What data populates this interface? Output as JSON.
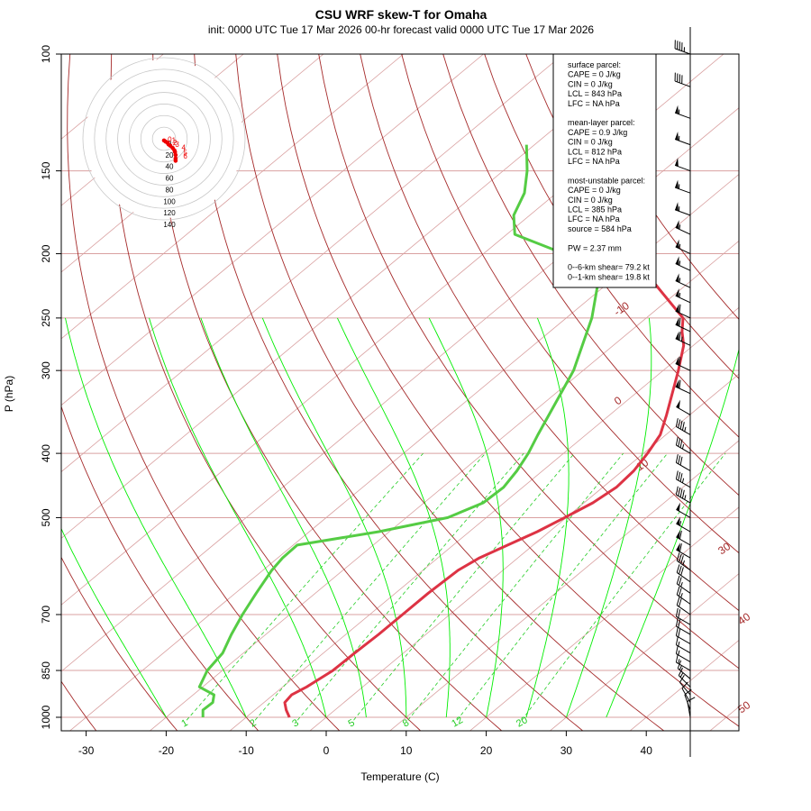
{
  "chart_data": {
    "type": "skew-t",
    "title": "CSU WRF skew-T for Omaha",
    "subtitle": "init: 0000 UTC Tue 17 Mar 2026     00-hr forecast valid 0000 UTC Tue 17 Mar 2026",
    "xlabel": "Temperature (C)",
    "ylabel": "P (hPa)",
    "xlim": [
      -33,
      45
    ],
    "ylim": [
      1000,
      100
    ],
    "x_ticks": [
      -30,
      -20,
      -10,
      0,
      10,
      20,
      30,
      40
    ],
    "y_ticks": [
      100,
      150,
      200,
      250,
      300,
      400,
      500,
      700,
      850,
      1000
    ],
    "dry_adiabat_labels": [
      "-10",
      "0",
      "10",
      "30",
      "40",
      "50"
    ],
    "dry_adiabats_C": [
      -70,
      -60,
      -50,
      -40,
      -30,
      -20,
      -10,
      0,
      10,
      20,
      30,
      40,
      50,
      60,
      70,
      80,
      90,
      100,
      110,
      120
    ],
    "moist_adiabats_C": [
      -20,
      -10,
      0,
      5,
      10,
      15,
      20,
      25,
      30,
      35
    ],
    "mixing_ratio_labels": [
      "1",
      "2",
      "3",
      "5",
      "8",
      "12",
      "20"
    ],
    "mixing_ratios_gkg": [
      1,
      2,
      3,
      5,
      8,
      12,
      20
    ],
    "series": [
      {
        "name": "temperature",
        "points": [
          [
            1000,
            -4.6
          ],
          [
            975,
            -6.1
          ],
          [
            950,
            -7.4
          ],
          [
            925,
            -7.7
          ],
          [
            900,
            -7.0
          ],
          [
            850,
            -6.2
          ],
          [
            800,
            -6.1
          ],
          [
            750,
            -5.9
          ],
          [
            700,
            -5.9
          ],
          [
            650,
            -5.9
          ],
          [
            600,
            -5.6
          ],
          [
            575,
            -4.8
          ],
          [
            550,
            -3.2
          ],
          [
            525,
            -1.5
          ],
          [
            500,
            -0.2
          ],
          [
            475,
            1.1
          ],
          [
            450,
            1.7
          ],
          [
            425,
            1.4
          ],
          [
            400,
            0.5
          ],
          [
            375,
            -0.7
          ],
          [
            350,
            -2.9
          ],
          [
            325,
            -5.4
          ],
          [
            300,
            -8.1
          ],
          [
            275,
            -11.2
          ],
          [
            262,
            -13.5
          ],
          [
            250,
            -15.4
          ],
          [
            237,
            -19.3
          ],
          [
            225,
            -23.1
          ],
          [
            212,
            -27.6
          ],
          [
            200,
            -30.9
          ],
          [
            187,
            -34.9
          ],
          [
            175,
            -38.9
          ],
          [
            162,
            -43.0
          ],
          [
            150,
            -47.7
          ],
          [
            137,
            -52.9
          ],
          [
            125,
            -57.9
          ],
          [
            112,
            -63.2
          ],
          [
            108,
            -64.9
          ]
        ]
      },
      {
        "name": "dewpoint",
        "points": [
          [
            1000,
            -15.4
          ],
          [
            975,
            -16.5
          ],
          [
            950,
            -16.4
          ],
          [
            925,
            -17.4
          ],
          [
            900,
            -20.4
          ],
          [
            850,
            -21.9
          ],
          [
            800,
            -22.6
          ],
          [
            750,
            -24.3
          ],
          [
            700,
            -25.9
          ],
          [
            650,
            -27.4
          ],
          [
            600,
            -28.9
          ],
          [
            575,
            -29.4
          ],
          [
            550,
            -29.5
          ],
          [
            525,
            -21.3
          ],
          [
            500,
            -14.8
          ],
          [
            475,
            -12.6
          ],
          [
            450,
            -12.4
          ],
          [
            425,
            -13.2
          ],
          [
            400,
            -14.4
          ],
          [
            375,
            -16.0
          ],
          [
            350,
            -17.6
          ],
          [
            300,
            -21.2
          ],
          [
            250,
            -26.8
          ],
          [
            225,
            -30.7
          ],
          [
            212,
            -32.5
          ],
          [
            200,
            -39.9
          ],
          [
            187,
            -49.0
          ],
          [
            175,
            -52.0
          ],
          [
            162,
            -54.0
          ],
          [
            150,
            -57.0
          ],
          [
            137,
            -61.0
          ]
        ]
      }
    ],
    "hodograph": {
      "ring_labels": [
        "0",
        "20",
        "40",
        "60",
        "80",
        "100",
        "120",
        "140"
      ],
      "trace_uv_kt": [
        [
          0,
          -3
        ],
        [
          3,
          -5
        ],
        [
          6,
          -7
        ],
        [
          8,
          -10
        ],
        [
          11,
          -12
        ],
        [
          15,
          -16
        ],
        [
          18,
          -20
        ],
        [
          19,
          -23
        ],
        [
          20,
          -28
        ],
        [
          20,
          -34
        ],
        [
          20,
          -38
        ]
      ],
      "height_labels": [
        "0",
        "1",
        "2",
        "3",
        "4",
        "5",
        "6"
      ],
      "height_label_uv_kt": [
        [
          -3,
          -2
        ],
        [
          4,
          -4
        ],
        [
          6,
          -8
        ],
        [
          10,
          -11
        ],
        [
          21,
          -16
        ],
        [
          24,
          -25
        ],
        [
          24,
          -31
        ]
      ]
    },
    "wind_barbs": [
      {
        "p": 1000,
        "speed_kt": 10,
        "dir": 350
      },
      {
        "p": 975,
        "speed_kt": 10,
        "dir": 340
      },
      {
        "p": 950,
        "speed_kt": 10,
        "dir": 330
      },
      {
        "p": 925,
        "speed_kt": 10,
        "dir": 320
      },
      {
        "p": 900,
        "speed_kt": 15,
        "dir": 315
      },
      {
        "p": 875,
        "speed_kt": 15,
        "dir": 310
      },
      {
        "p": 850,
        "speed_kt": 15,
        "dir": 300
      },
      {
        "p": 825,
        "speed_kt": 15,
        "dir": 300
      },
      {
        "p": 800,
        "speed_kt": 15,
        "dir": 300
      },
      {
        "p": 775,
        "speed_kt": 20,
        "dir": 300
      },
      {
        "p": 750,
        "speed_kt": 20,
        "dir": 300
      },
      {
        "p": 725,
        "speed_kt": 20,
        "dir": 300
      },
      {
        "p": 700,
        "speed_kt": 20,
        "dir": 305
      },
      {
        "p": 675,
        "speed_kt": 25,
        "dir": 305
      },
      {
        "p": 650,
        "speed_kt": 25,
        "dir": 305
      },
      {
        "p": 625,
        "speed_kt": 30,
        "dir": 305
      },
      {
        "p": 600,
        "speed_kt": 35,
        "dir": 305
      },
      {
        "p": 575,
        "speed_kt": 60,
        "dir": 300
      },
      {
        "p": 550,
        "speed_kt": 60,
        "dir": 300
      },
      {
        "p": 525,
        "speed_kt": 55,
        "dir": 300
      },
      {
        "p": 500,
        "speed_kt": 50,
        "dir": 300
      },
      {
        "p": 475,
        "speed_kt": 45,
        "dir": 300
      },
      {
        "p": 450,
        "speed_kt": 35,
        "dir": 300
      },
      {
        "p": 425,
        "speed_kt": 30,
        "dir": 300
      },
      {
        "p": 400,
        "speed_kt": 35,
        "dir": 300
      },
      {
        "p": 375,
        "speed_kt": 45,
        "dir": 300
      },
      {
        "p": 350,
        "speed_kt": 50,
        "dir": 300
      },
      {
        "p": 325,
        "speed_kt": 60,
        "dir": 295
      },
      {
        "p": 300,
        "speed_kt": 60,
        "dir": 295
      },
      {
        "p": 275,
        "speed_kt": 65,
        "dir": 295
      },
      {
        "p": 262,
        "speed_kt": 60,
        "dir": 295
      },
      {
        "p": 250,
        "speed_kt": 60,
        "dir": 295
      },
      {
        "p": 237,
        "speed_kt": 55,
        "dir": 295
      },
      {
        "p": 225,
        "speed_kt": 55,
        "dir": 295
      },
      {
        "p": 212,
        "speed_kt": 55,
        "dir": 295
      },
      {
        "p": 200,
        "speed_kt": 55,
        "dir": 295
      },
      {
        "p": 187,
        "speed_kt": 55,
        "dir": 295
      },
      {
        "p": 175,
        "speed_kt": 55,
        "dir": 290
      },
      {
        "p": 162,
        "speed_kt": 55,
        "dir": 290
      },
      {
        "p": 150,
        "speed_kt": 50,
        "dir": 290
      },
      {
        "p": 137,
        "speed_kt": 55,
        "dir": 290
      },
      {
        "p": 125,
        "speed_kt": 55,
        "dir": 290
      },
      {
        "p": 112,
        "speed_kt": 40,
        "dir": 290
      },
      {
        "p": 100,
        "speed_kt": 45,
        "dir": 290
      }
    ],
    "info_box": [
      "surface parcel:",
      "CAPE = 0 J/kg",
      "CIN = 0 J/kg",
      "LCL = 843 hPa",
      "LFC = NA hPa",
      "",
      "mean-layer parcel:",
      "CAPE = 0.9 J/kg",
      "CIN = 0 J/kg",
      "LCL = 812 hPa",
      "LFC = NA hPa",
      "",
      "most-unstable parcel:",
      "CAPE = 0 J/kg",
      "CIN = 0 J/kg",
      "LCL = 385 hPa",
      "LFC = NA hPa",
      "source = 584 hPa",
      "",
      "PW =  2.37 mm",
      "",
      "0--6-km shear= 79.2 kt",
      "0--1-km shear= 19.8 kt"
    ],
    "colors": {
      "temperature": "#dd3344",
      "dewpoint": "#55cc44",
      "dry_adiabat": "#a52a2a",
      "moist_adiabat": "#00ee00",
      "mixing_ratio": "#22cc22",
      "isotherm": "#d9a0a0",
      "isobar": "#d9a0a0",
      "hodograph_trace": "#ee0000",
      "hodograph_ring": "#c8c8c8"
    }
  }
}
